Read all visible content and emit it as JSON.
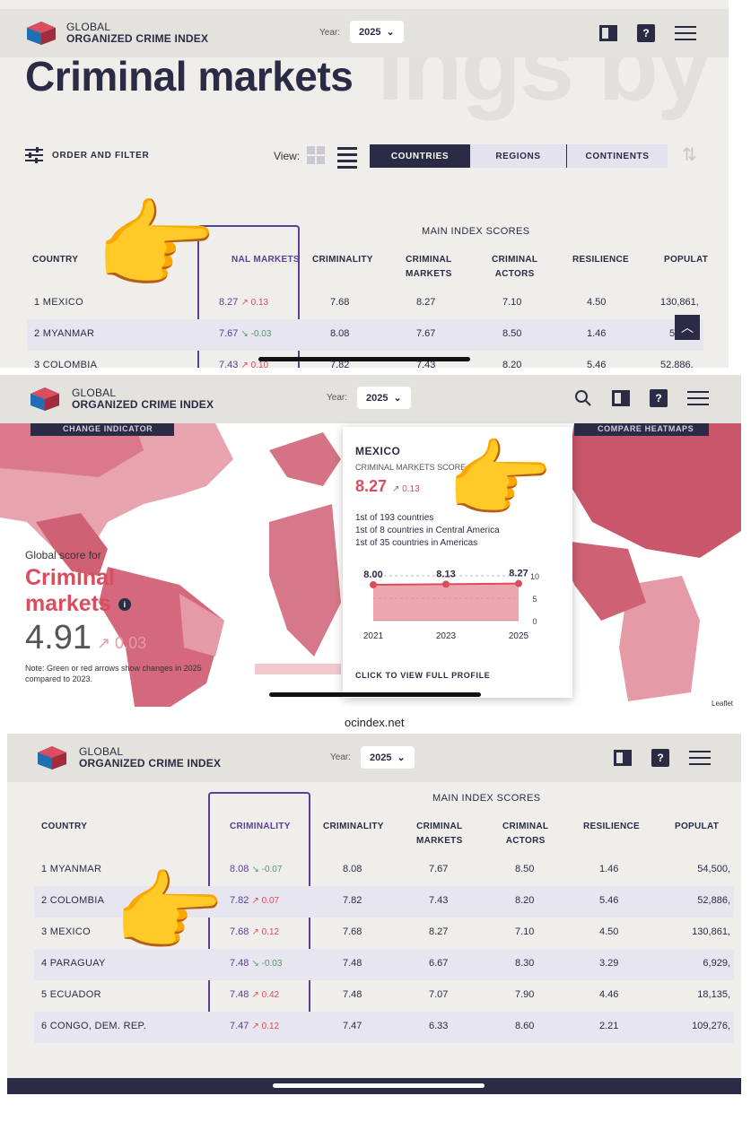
{
  "brand": {
    "line1": "GLOBAL",
    "line2": "ORGANIZED CRIME INDEX"
  },
  "year": {
    "label": "Year:",
    "value": "2025"
  },
  "shot1": {
    "title": "Criminal markets",
    "order_filter": "ORDER AND FILTER",
    "view_label": "View:",
    "toggle": [
      "COUNTRIES",
      "REGIONS",
      "CONTINENTS"
    ],
    "main_scores": "MAIN INDEX SCORES",
    "headers": {
      "country": "COUNTRY",
      "highlight": "NAL MARKETS",
      "c1": "CRIMINALITY",
      "c2a": "CRIMINAL",
      "c2b": "MARKETS",
      "c3a": "CRIMINAL",
      "c3b": "ACTORS",
      "c4": "RESILIENCE",
      "c5": "POPULAT"
    },
    "rows": [
      {
        "name": "1 MEXICO",
        "hl": "8.27",
        "chg": "↗ 0.13",
        "dir": "up",
        "c1": "7.68",
        "c2": "8.27",
        "c3": "7.10",
        "c4": "4.50",
        "c5": "130,861,"
      },
      {
        "name": "2 MYANMAR",
        "hl": "7.67",
        "chg": "↘ -0.03",
        "dir": "down",
        "c1": "8.08",
        "c2": "7.67",
        "c3": "8.50",
        "c4": "1.46",
        "c5": "5"
      },
      {
        "name": "3 COLOMBIA",
        "hl": "7.43",
        "chg": "↗ 0.10",
        "dir": "up",
        "c1": "7.82",
        "c2": "7.43",
        "c3": "8.20",
        "c4": "5.46",
        "c5": "52,886,"
      }
    ]
  },
  "shot2": {
    "change_indicator": "CHANGE INDICATOR",
    "compare_heatmaps": "COMPARE HEATMAPS",
    "global_score_for": "Global score for",
    "criminal": "Criminal",
    "markets": "markets",
    "global_value": "4.91",
    "global_change": "↗ 0.03",
    "note": "Note: Green or red arrows show changes in 2025 compared to 2023.",
    "leaflet": "Leaflet",
    "popup": {
      "country": "MEXICO",
      "score_label": "CRIMINAL MARKETS SCORE",
      "score": "8.27",
      "change": "↗ 0.13",
      "rank1": "1st of 193 countries",
      "rank2": "1st of 8 countries in Central America",
      "rank3": "1st of 35 countries in Americas",
      "chart_values": [
        "8.00",
        "8.13",
        "8.27"
      ],
      "chart_years": [
        "2021",
        "2023",
        "2025"
      ],
      "y_ticks": [
        "10",
        "5",
        "0"
      ],
      "cta": "CLICK TO VIEW FULL PROFILE"
    },
    "url": "ocindex.net"
  },
  "chart_data": {
    "type": "area",
    "title": "",
    "x": [
      "2021",
      "2023",
      "2025"
    ],
    "series": [
      {
        "values": [
          8.0,
          8.13,
          8.27
        ]
      }
    ],
    "ylim": [
      0,
      10
    ],
    "yticks": [
      0,
      5,
      10
    ],
    "color": "#d94d5e"
  },
  "shot3": {
    "main_scores": "MAIN INDEX SCORES",
    "headers": {
      "country": "COUNTRY",
      "highlight": "CRIMINALITY",
      "c1": "CRIMINALITY",
      "c2a": "CRIMINAL",
      "c2b": "MARKETS",
      "c3a": "CRIMINAL",
      "c3b": "ACTORS",
      "c4": "RESILIENCE",
      "c5": "POPULAT"
    },
    "rows": [
      {
        "name": "1 MYANMAR",
        "hl": "8.08",
        "chg": "↘ -0.07",
        "dir": "down",
        "c1": "8.08",
        "c2": "7.67",
        "c3": "8.50",
        "c4": "1.46",
        "c5": "54,500,"
      },
      {
        "name": "2 COLOMBIA",
        "hl": "7.82",
        "chg": "↗ 0.07",
        "dir": "up",
        "c1": "7.82",
        "c2": "7.43",
        "c3": "8.20",
        "c4": "5.46",
        "c5": "52,886,"
      },
      {
        "name": "3 MEXICO",
        "hl": "7.68",
        "chg": "↗ 0.12",
        "dir": "up",
        "c1": "7.68",
        "c2": "8.27",
        "c3": "7.10",
        "c4": "4.50",
        "c5": "130,861,"
      },
      {
        "name": "4 PARAGUAY",
        "hl": "7.48",
        "chg": "↘ -0.03",
        "dir": "down",
        "c1": "7.48",
        "c2": "6.67",
        "c3": "8.30",
        "c4": "3.29",
        "c5": "6,929,"
      },
      {
        "name": "5 ECUADOR",
        "hl": "7.48",
        "chg": "↗ 0.42",
        "dir": "up",
        "c1": "7.48",
        "c2": "7.07",
        "c3": "7.90",
        "c4": "4.46",
        "c5": "18,135,"
      },
      {
        "name": "6 CONGO, DEM. REP.",
        "hl": "7.47",
        "chg": "↗ 0.12",
        "dir": "up",
        "c1": "7.47",
        "c2": "6.33",
        "c3": "8.60",
        "c4": "2.21",
        "c5": "109,276,"
      }
    ]
  },
  "colors": {
    "navy": "#2b2b45",
    "purple": "#5b3e98",
    "red": "#d94d5e",
    "green": "#4e9a6b"
  }
}
